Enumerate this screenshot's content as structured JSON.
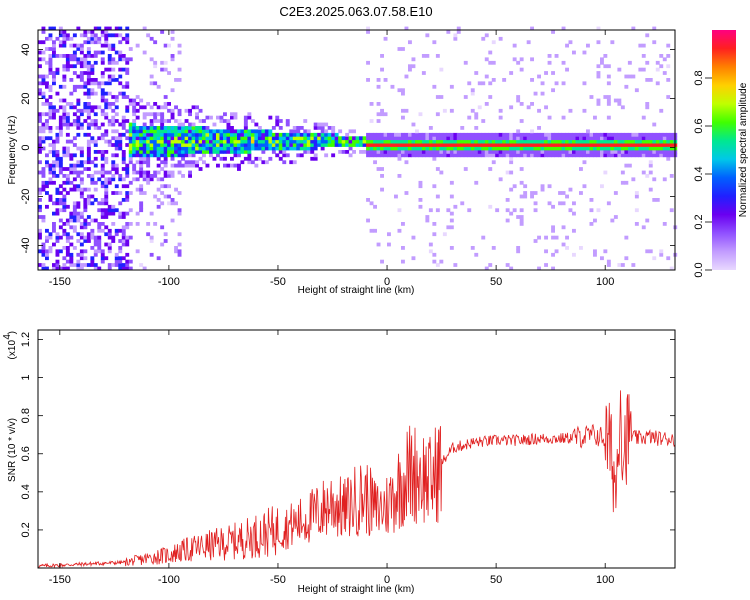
{
  "title": "C2E3.2025.063.07.58.E10",
  "colors": {
    "snr_line": "#e02020",
    "colormap": [
      "#e8d8ff",
      "#c29cff",
      "#9050ff",
      "#6a00f0",
      "#2020ff",
      "#0060ff",
      "#00c8e8",
      "#00e890",
      "#40ff00",
      "#c0ff00",
      "#ffd000",
      "#ff8000",
      "#ff2020",
      "#ff0080"
    ]
  },
  "chart_data": [
    {
      "type": "heatmap",
      "title": "C2E3.2025.063.07.58.E10",
      "xlabel": "Height of straight line (km)",
      "ylabel": "Frequency (Hz)",
      "xlim": [
        -160,
        132
      ],
      "ylim": [
        -50,
        48
      ],
      "xticks": [
        -150,
        -100,
        -50,
        0,
        50,
        100
      ],
      "yticks": [
        -40,
        -20,
        0,
        20,
        40
      ],
      "colorbar": {
        "label": "Normalized spectral amplitude",
        "range": [
          0.0,
          1.0
        ],
        "ticks": [
          "0.0",
          "0.2",
          "0.4",
          "0.6",
          "0.8"
        ]
      },
      "features": [
        {
          "region": "broadband noise",
          "x_range": [
            -160,
            -120
          ],
          "frequency_range": [
            -50,
            48
          ]
        },
        {
          "region": "sparse noise",
          "x_range": [
            -120,
            -95
          ],
          "frequency_range": [
            -50,
            48
          ]
        },
        {
          "region": "narrowing signal band",
          "x_range": [
            -120,
            -10
          ],
          "center_hz": 2,
          "half_width_hz": [
            7,
            2
          ]
        },
        {
          "region": "peak line",
          "x_range": [
            -10,
            132
          ],
          "center_hz": 0.5,
          "normalized_amplitude": 1.0
        }
      ]
    },
    {
      "type": "line",
      "xlabel": "Height of straight line (km)",
      "ylabel": "SNR (10 * v/v)",
      "y_multiplier": "(x10",
      "y_multiplier_exp": "4",
      "xlim": [
        -160,
        132
      ],
      "ylim": [
        0,
        1.25
      ],
      "xticks": [
        -150,
        -100,
        -50,
        0,
        50,
        100
      ],
      "yticks": [
        0.2,
        0.4,
        0.6,
        0.8,
        1.0,
        1.2
      ],
      "series": [
        {
          "x": [
            -160,
            -140,
            -120,
            -110,
            -100,
            -90,
            -80,
            -70,
            -60,
            -50,
            -40,
            -30,
            -25,
            -20,
            -15,
            -10,
            -5,
            0,
            5,
            10,
            15,
            20,
            25,
            30,
            40,
            50,
            60,
            70,
            80,
            90,
            95,
            100,
            103,
            105,
            107,
            108,
            110,
            115,
            120,
            125,
            132
          ],
          "y": [
            0.01,
            0.02,
            0.03,
            0.05,
            0.07,
            0.1,
            0.12,
            0.14,
            0.17,
            0.2,
            0.24,
            0.3,
            0.35,
            0.3,
            0.35,
            0.38,
            0.3,
            0.33,
            0.42,
            0.5,
            0.5,
            0.45,
            0.55,
            0.63,
            0.66,
            0.67,
            0.67,
            0.68,
            0.68,
            0.69,
            0.7,
            0.68,
            0.6,
            0.4,
            0.95,
            0.6,
            0.7,
            0.68,
            0.69,
            0.68,
            0.68
          ]
        }
      ]
    }
  ]
}
